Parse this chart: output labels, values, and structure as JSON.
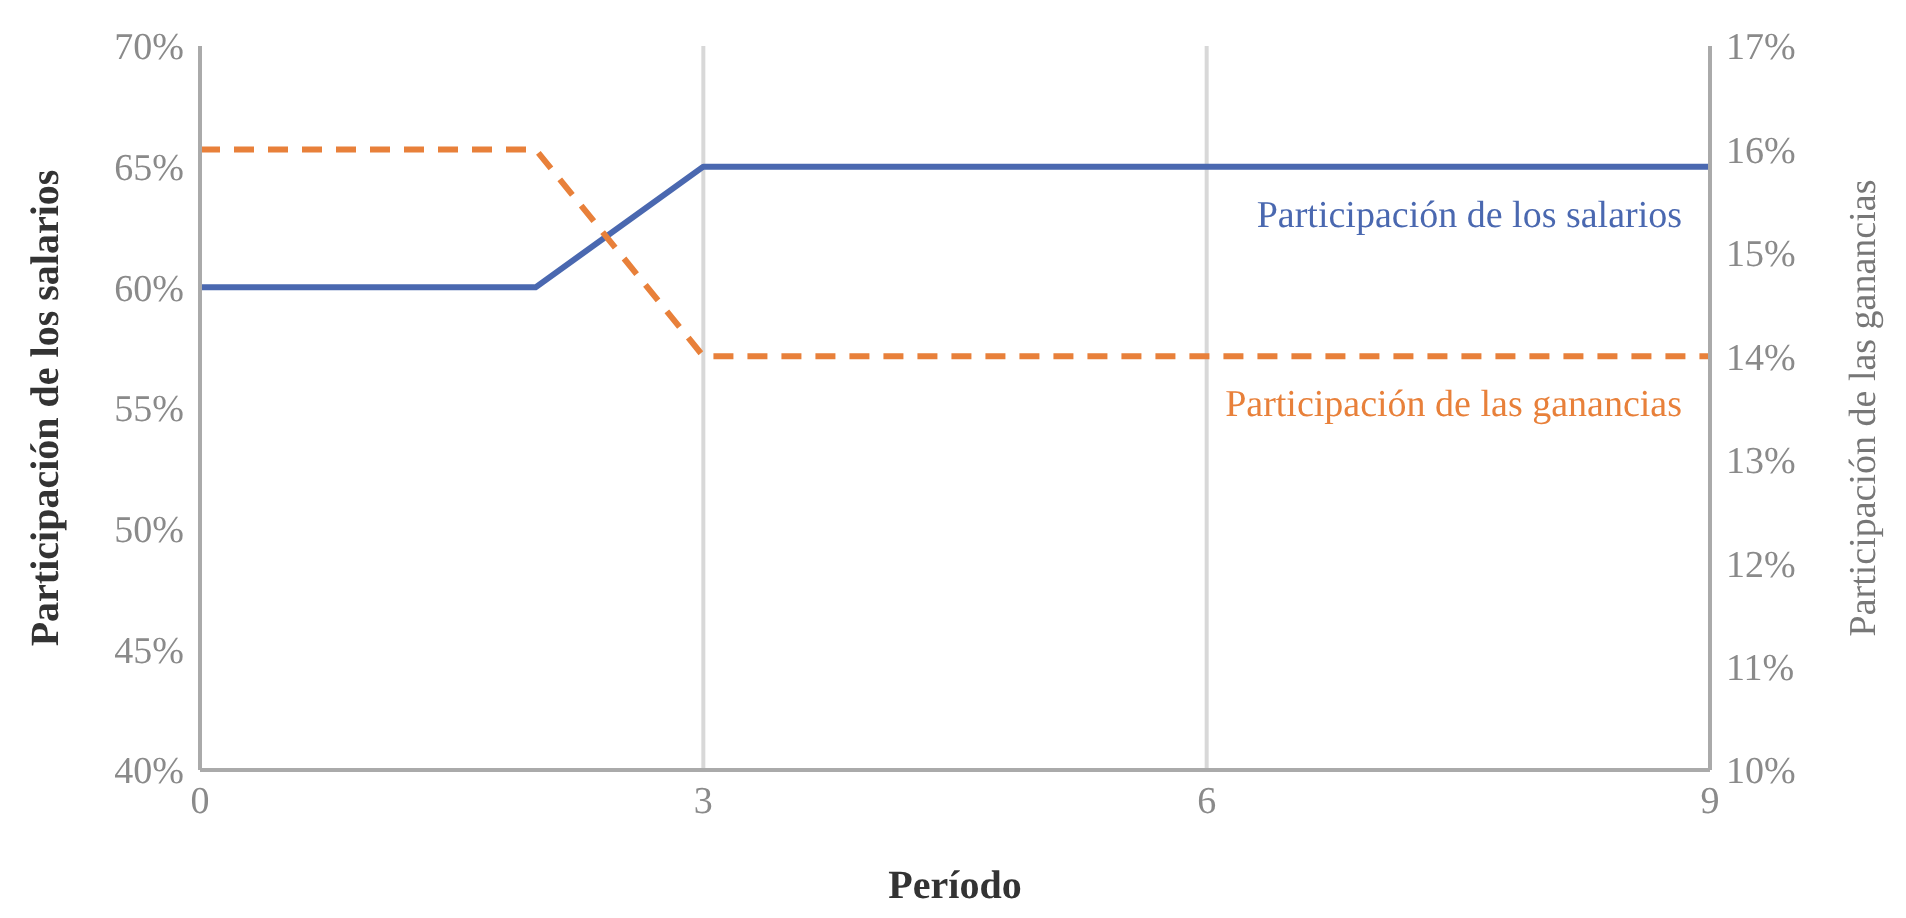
{
  "chart_data": {
    "type": "line",
    "xlabel": "Período",
    "ylabel": "Participación de los salarios",
    "y2label": "Participación de las ganancias",
    "xlim": [
      0,
      9
    ],
    "xticks": [
      0,
      3,
      6,
      9
    ],
    "ylim": [
      40,
      70
    ],
    "yticks": [
      {
        "value": 40,
        "label": "40%"
      },
      {
        "value": 45,
        "label": "45%"
      },
      {
        "value": 50,
        "label": "50%"
      },
      {
        "value": 55,
        "label": "55%"
      },
      {
        "value": 60,
        "label": "60%"
      },
      {
        "value": 65,
        "label": "65%"
      },
      {
        "value": 70,
        "label": "70%"
      }
    ],
    "y2lim": [
      10,
      17
    ],
    "y2ticks": [
      {
        "value": 10,
        "label": "10%"
      },
      {
        "value": 11,
        "label": "11%"
      },
      {
        "value": 12,
        "label": "12%"
      },
      {
        "value": 13,
        "label": "13%"
      },
      {
        "value": 14,
        "label": "14%"
      },
      {
        "value": 15,
        "label": "15%"
      },
      {
        "value": 16,
        "label": "16%"
      },
      {
        "value": 17,
        "label": "17%"
      }
    ],
    "grid": "x",
    "legend": false,
    "marker": "none",
    "series": [
      {
        "name": "Participación de los salarios",
        "color": "#4a68b0",
        "x": [
          0,
          2,
          3,
          9
        ],
        "values": [
          60,
          60,
          65,
          65
        ],
        "axis": "y",
        "line_style": "solid"
      },
      {
        "name": "Participación de las ganancias",
        "color": "#e8803a",
        "x": [
          0,
          2,
          3,
          9
        ],
        "values": [
          16,
          16,
          14,
          14
        ],
        "axis": "y2",
        "line_style": "dashed"
      }
    ]
  }
}
